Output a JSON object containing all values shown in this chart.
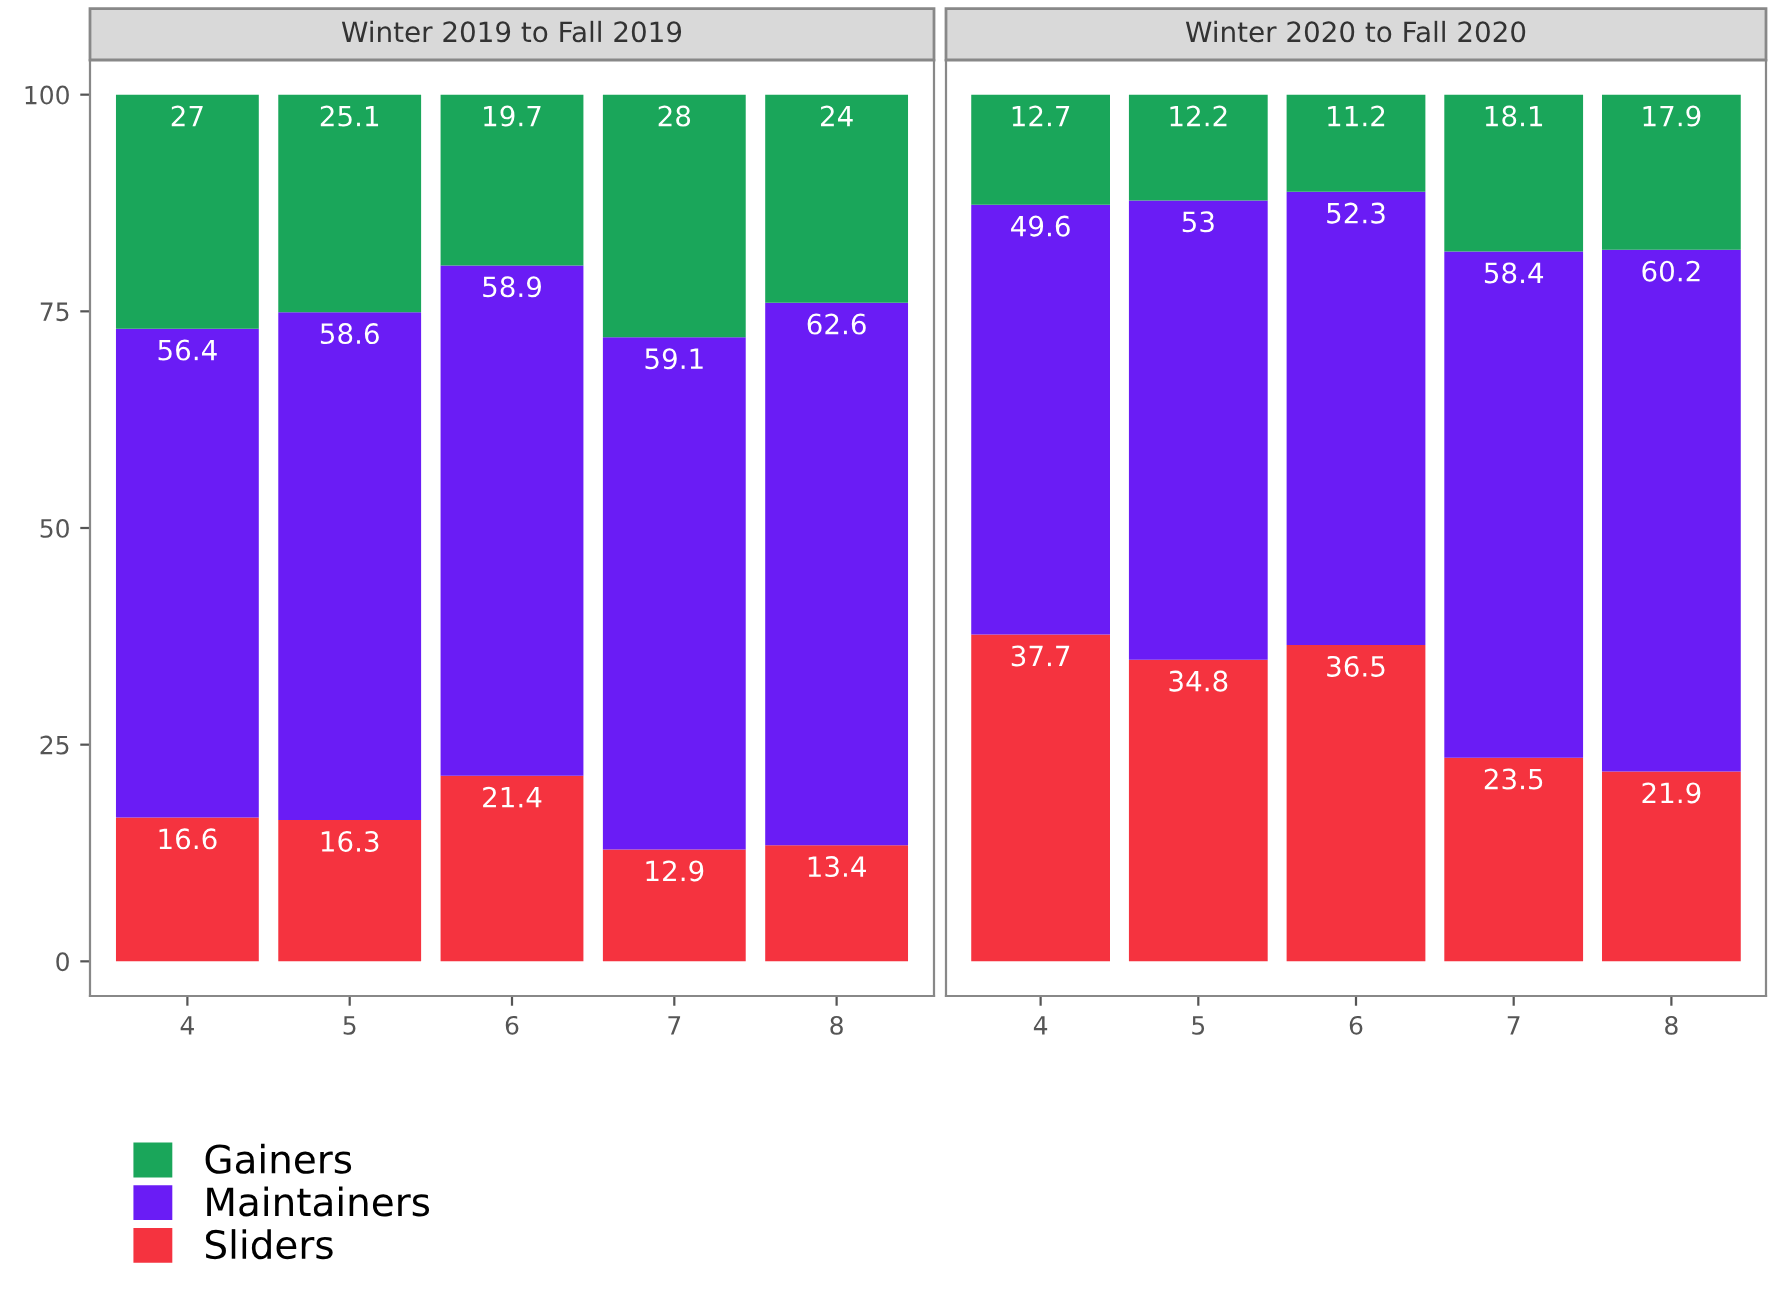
{
  "chart_data": [
    {
      "type": "bar",
      "title": "Winter 2019 to Fall 2019",
      "categories": [
        "4",
        "5",
        "6",
        "7",
        "8"
      ],
      "stacked": true,
      "data_labels": true,
      "grid": false,
      "legend": "bottom left",
      "ylim": [
        -4,
        104
      ],
      "yticks": [
        0,
        25,
        50,
        75,
        100
      ],
      "series": [
        {
          "name": "Sliders",
          "color": "#f5333f",
          "values": [
            16.6,
            16.3,
            21.4,
            12.9,
            13.4
          ]
        },
        {
          "name": "Maintainers",
          "color": "#6a1cf5",
          "values": [
            56.4,
            58.6,
            58.9,
            59.1,
            62.6
          ]
        },
        {
          "name": "Gainers",
          "color": "#1aa65a",
          "values": [
            27,
            25.1,
            19.7,
            28,
            24
          ]
        }
      ]
    },
    {
      "type": "bar",
      "title": "Winter 2020 to Fall 2020",
      "categories": [
        "4",
        "5",
        "6",
        "7",
        "8"
      ],
      "stacked": true,
      "data_labels": true,
      "grid": false,
      "tick_labels": "x",
      "ylim": [
        -4,
        104
      ],
      "yticks": [
        0,
        25,
        50,
        75,
        100
      ],
      "series": [
        {
          "name": "Sliders",
          "color": "#f5333f",
          "values": [
            37.7,
            34.8,
            36.5,
            23.5,
            21.9
          ]
        },
        {
          "name": "Maintainers",
          "color": "#6a1cf5",
          "values": [
            49.6,
            53,
            52.3,
            58.4,
            60.2
          ]
        },
        {
          "name": "Gainers",
          "color": "#1aa65a",
          "values": [
            12.7,
            12.2,
            11.2,
            18.1,
            17.9
          ]
        }
      ]
    }
  ]
}
